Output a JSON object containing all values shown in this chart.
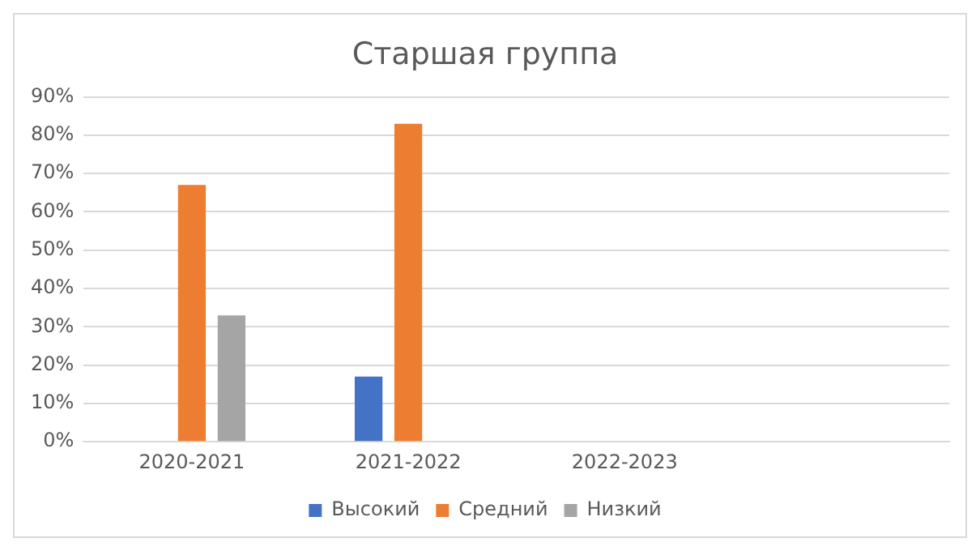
{
  "chart_data": {
    "type": "bar",
    "title": "Старшая группа",
    "categories": [
      "2020-2021",
      "2021-2022",
      "2022-2023",
      null
    ],
    "series": [
      {
        "name": "Высокий",
        "color": "#4472c4",
        "values": [
          null,
          17,
          null,
          null
        ]
      },
      {
        "name": "Средний",
        "color": "#ed7d31",
        "values": [
          67,
          83,
          null,
          null
        ]
      },
      {
        "name": "Низкий",
        "color": "#a5a5a5",
        "values": [
          33,
          null,
          null,
          null
        ]
      }
    ],
    "ylim": [
      0,
      90
    ],
    "yticks": [
      {
        "value": 0,
        "label": "0%"
      },
      {
        "value": 10,
        "label": "10%"
      },
      {
        "value": 20,
        "label": "20%"
      },
      {
        "value": 30,
        "label": "30%"
      },
      {
        "value": 40,
        "label": "40%"
      },
      {
        "value": 50,
        "label": "50%"
      },
      {
        "value": 60,
        "label": "60%"
      },
      {
        "value": 70,
        "label": "70%"
      },
      {
        "value": 80,
        "label": "80%"
      },
      {
        "value": 90,
        "label": "90%"
      }
    ],
    "grid": "y",
    "legend": "bottom"
  }
}
